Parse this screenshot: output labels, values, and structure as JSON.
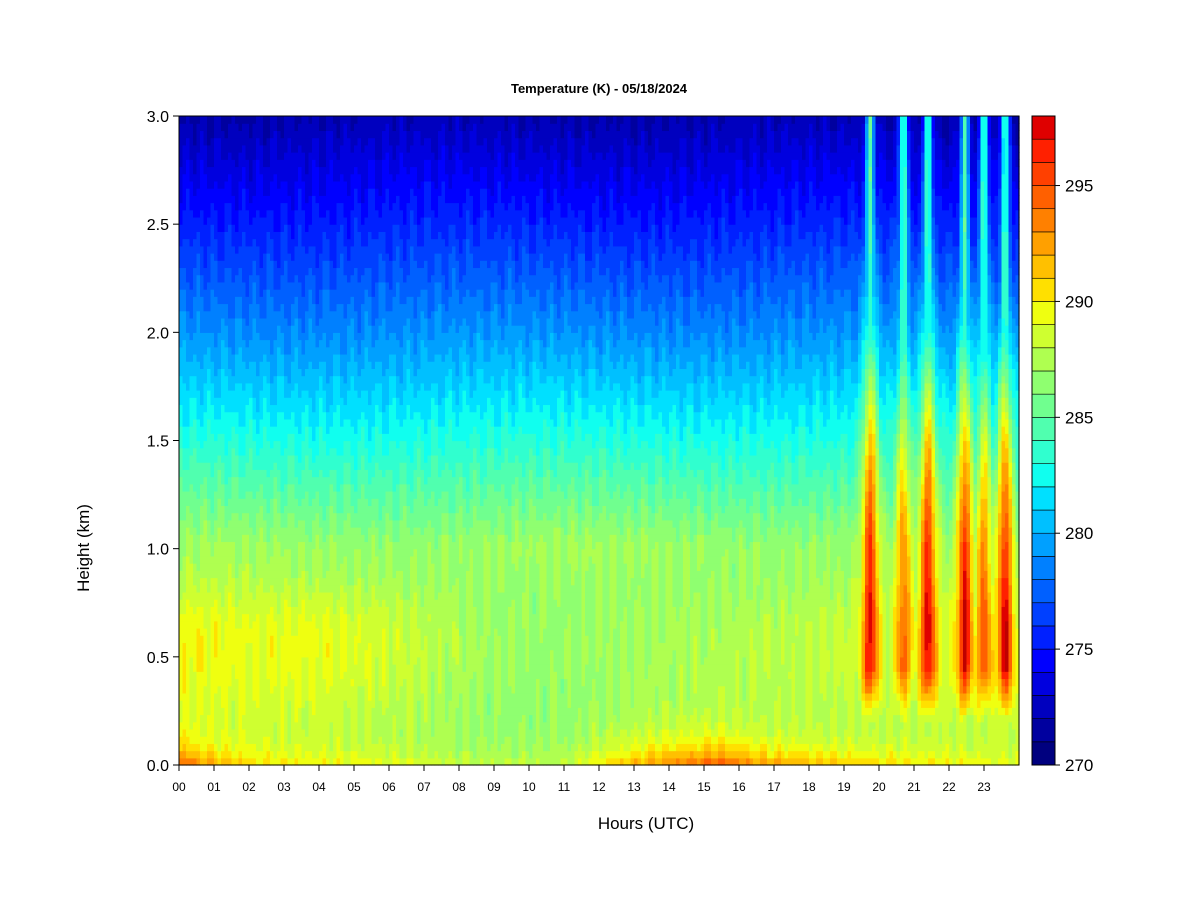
{
  "chart_data": {
    "type": "heatmap",
    "title": "Temperature (K) - 05/18/2024",
    "xlabel": "Hours (UTC)",
    "ylabel": "Height (km)",
    "xlim": [
      0,
      24
    ],
    "ylim": [
      0,
      3
    ],
    "x_ticks": [
      "00",
      "01",
      "02",
      "03",
      "04",
      "05",
      "06",
      "07",
      "08",
      "09",
      "10",
      "11",
      "12",
      "13",
      "14",
      "15",
      "16",
      "17",
      "18",
      "19",
      "20",
      "21",
      "22",
      "23"
    ],
    "y_ticks": [
      "0.0",
      "0.5",
      "1.0",
      "1.5",
      "2.0",
      "2.5",
      "3.0"
    ],
    "colorbar": {
      "range": [
        270,
        298
      ],
      "step": 1,
      "ticks": [
        "270",
        "275",
        "280",
        "285",
        "290",
        "295"
      ],
      "colors": [
        "#00007f",
        "#00009f",
        "#0000bf",
        "#0000df",
        "#0000ff",
        "#0020ff",
        "#0040ff",
        "#0060ff",
        "#0080ff",
        "#00a0ff",
        "#00c0ff",
        "#00e0ff",
        "#10ffef",
        "#30ffcf",
        "#50ffaf",
        "#70ff8f",
        "#8fff70",
        "#afff50",
        "#cfff30",
        "#efff10",
        "#ffe000",
        "#ffc000",
        "#ffa000",
        "#ff8000",
        "#ff6000",
        "#ff4000",
        "#ff2000",
        "#df0000",
        "#bf0000",
        "#9f0000",
        "#7f0000"
      ]
    },
    "heat_columns_hours": [
      19.75,
      20.7,
      21.4,
      22.45,
      23.0,
      23.6
    ],
    "surface_values_K": {
      "00": 295,
      "06": 289,
      "11": 288,
      "13": 292,
      "15.5": 295,
      "18": 292,
      "21": 290,
      "23.5": 289
    },
    "aloft_value_3km_K": 272
  }
}
